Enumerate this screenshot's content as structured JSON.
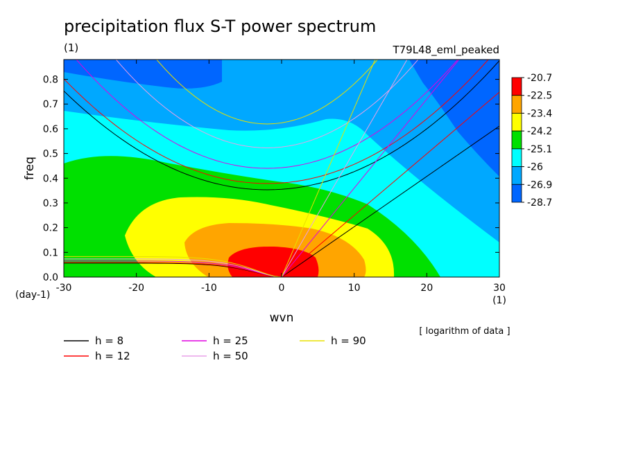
{
  "title": "precipitation flux S-T power spectrum",
  "unit_top_left": "(1)",
  "run_name": "T79L48_eml_peaked",
  "data_note": "[ logarithm of data ]",
  "chart_data": {
    "type": "contour",
    "title": "precipitation flux S-T power spectrum",
    "xlabel": "wvn",
    "ylabel": "freq",
    "x_unit": "(1)",
    "y_unit": "(day-1)",
    "xlim": [
      -30,
      30
    ],
    "ylim": [
      0.0,
      0.88
    ],
    "x_ticks": [
      -30,
      -20,
      -10,
      0,
      10,
      20,
      30
    ],
    "y_ticks": [
      0.0,
      0.1,
      0.2,
      0.3,
      0.4,
      0.5,
      0.6,
      0.7,
      0.8
    ],
    "x_tick_labels": [
      "-30",
      "-20",
      "-10",
      "0",
      "10",
      "20",
      "30"
    ],
    "y_tick_labels": [
      "0.0",
      "0.1",
      "0.2",
      "0.3",
      "0.4",
      "0.5",
      "0.6",
      "0.7",
      "0.8"
    ],
    "colorbar": {
      "labels": [
        "-20.7",
        "-22.5",
        "-23.4",
        "-24.2",
        "-25.1",
        "-26",
        "-26.9",
        "-28.7"
      ],
      "colors": [
        "#ff0000",
        "#ffa500",
        "#ffff00",
        "#00e000",
        "#00ffff",
        "#00a8ff",
        "#0066ff"
      ]
    },
    "contour_bands_description": "log power, maximum near wvn 0-5 at low freq, decreasing outward",
    "dispersion_curves": [
      {
        "name": "h =  8",
        "color": "#000000"
      },
      {
        "name": "h = 12",
        "color": "#ff0000"
      },
      {
        "name": "h = 25",
        "color": "#e000e0"
      },
      {
        "name": "h = 50",
        "color": "#e8a0e8"
      },
      {
        "name": "h = 90",
        "color": "#e8e000"
      }
    ]
  },
  "legend": [
    {
      "label": "h =  8",
      "color": "#000000"
    },
    {
      "label": "h = 12",
      "color": "#ff0000"
    },
    {
      "label": "h = 25",
      "color": "#e000e0"
    },
    {
      "label": "h = 50",
      "color": "#e8a0e8"
    },
    {
      "label": "h = 90",
      "color": "#e8e000"
    }
  ]
}
